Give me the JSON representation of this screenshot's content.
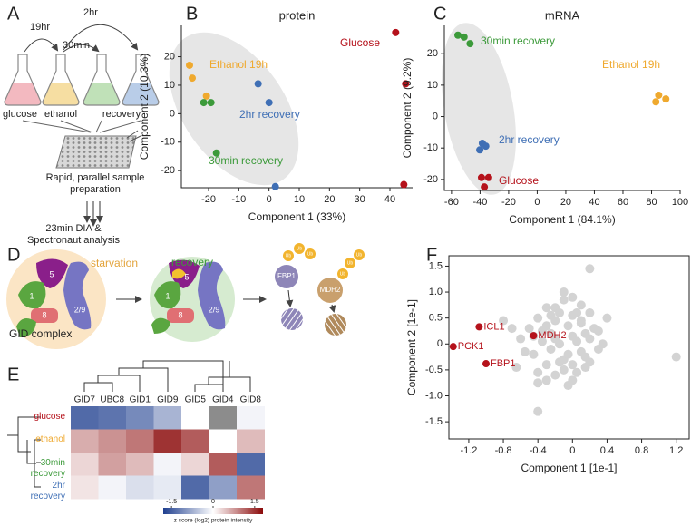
{
  "panel_labels": [
    "A",
    "B",
    "C",
    "D",
    "E",
    "F"
  ],
  "workflow": {
    "times": [
      "19hr",
      "30min",
      "2hr"
    ],
    "flasks": [
      "glucose",
      "ethanol",
      "recovery"
    ],
    "steps": [
      "Rapid, parallel sample preparation",
      "23min DIA & Spectronaut analysis"
    ]
  },
  "gid": {
    "states": [
      "starvation",
      "recovery"
    ],
    "subunits": [
      "5",
      "1",
      "8",
      "2/9"
    ],
    "caption": "GID complex",
    "substrates": [
      "FBP1",
      "MDH2"
    ],
    "tag": "Ub"
  },
  "chart_data": [
    {
      "type": "scatter",
      "title": "protein",
      "xlabel": "Component 1 (33%)",
      "ylabel": "Component 2 (10.3%)",
      "xlim": [
        -29,
        47.5
      ],
      "ylim": [
        -26,
        31
      ],
      "xticks": [
        -20,
        -10,
        0,
        10,
        20,
        30,
        40
      ],
      "yticks": [
        -20,
        -10,
        0,
        10,
        20
      ],
      "series": [
        {
          "name": "Glucose",
          "color": "#b5121b",
          "x": [
            41.9,
            45.2,
            44.6
          ],
          "y": [
            28.5,
            10.5,
            -24.9
          ]
        },
        {
          "name": "Ethanol 19h",
          "color": "#efa92e",
          "x": [
            -26.3,
            -25.4,
            -20.7
          ],
          "y": [
            17,
            12.5,
            6.2
          ]
        },
        {
          "name": "30min recovery",
          "color": "#3c9a3a",
          "x": [
            -21.6,
            -19.2,
            -17.4
          ],
          "y": [
            3.9,
            3.9,
            -13.8
          ]
        },
        {
          "name": "2hr recovery",
          "color": "#3f6fb5",
          "x": [
            -3.6,
            0,
            2.1
          ],
          "y": [
            10.5,
            3.9,
            -25.6
          ]
        }
      ]
    },
    {
      "type": "scatter",
      "title": "mRNA",
      "xlabel": "Component 1 (84.1%)",
      "ylabel": "Component 2 (9.2%)",
      "xlim": [
        -65,
        100
      ],
      "ylim": [
        -23.5,
        29
      ],
      "xticks": [
        -60,
        -40,
        -20,
        0,
        20,
        40,
        60,
        80,
        100
      ],
      "yticks": [
        -20,
        -10,
        0,
        10,
        20
      ],
      "series": [
        {
          "name": "30min recovery",
          "color": "#3c9a3a",
          "x": [
            -55.5,
            -51.2,
            -47
          ],
          "y": [
            25.9,
            25.3,
            23.2
          ]
        },
        {
          "name": "Ethanol 19h",
          "color": "#efa92e",
          "x": [
            85,
            90,
            83
          ],
          "y": [
            6.8,
            5.6,
            4.7
          ]
        },
        {
          "name": "2hr recovery",
          "color": "#3f6fb5",
          "x": [
            -38.4,
            -36,
            -40.2
          ],
          "y": [
            -8.5,
            -9.4,
            -10.6
          ]
        },
        {
          "name": "Glucose",
          "color": "#b5121b",
          "x": [
            -39,
            -34,
            -37
          ],
          "y": [
            -19.4,
            -19.4,
            -22.4
          ]
        }
      ]
    },
    {
      "type": "heatmap",
      "columns": [
        "GID7",
        "UBC8",
        "GID1",
        "GID9",
        "GID5",
        "GID4",
        "GID8"
      ],
      "rows": [
        "glucose",
        "ethanol",
        "30min recovery",
        "2hr recovery"
      ],
      "row_colors": [
        "#b5121b",
        "#efa92e",
        "#3c9a3a",
        "#3f6fb5"
      ],
      "values": [
        [
          -1.4,
          -1.3,
          -1.1,
          -0.7,
          0,
          null,
          -0.1
        ],
        [
          0.6,
          0.8,
          1.0,
          1.5,
          1.2,
          0,
          0.5
        ],
        [
          0.3,
          0.7,
          0.5,
          -0.1,
          0.3,
          1.2,
          -1.4
        ],
        [
          0.2,
          -0.1,
          -0.3,
          -0.2,
          -1.4,
          -0.9,
          1.0
        ]
      ],
      "missing_color": "#8c8c8c",
      "clim": [
        -1.8,
        1.8
      ],
      "colorbar": {
        "ticks": [
          -1.5,
          0,
          1.5
        ],
        "label": "z score (log2) protein intensity"
      }
    },
    {
      "type": "scatter",
      "xlabel": "Component 1 [1e-1]",
      "ylabel": "Component 2 [1e-1]",
      "xlim": [
        -1.43,
        1.35
      ],
      "ylim": [
        -1.83,
        1.7
      ],
      "xticks": [
        -1.2,
        -0.8,
        -0.4,
        0,
        0.4,
        0.8,
        1.2
      ],
      "yticks": [
        1.5,
        {
          "value": 1,
          "label": "1.0"
        },
        0.5,
        0,
        -0.5,
        {
          "value": -1,
          "label": "-1.0"
        },
        -1.5
      ],
      "series": [
        {
          "color": "#d3d3d3",
          "x": [
            -0.6,
            -0.5,
            -0.45,
            -0.4,
            -0.35,
            -0.3,
            -0.3,
            -0.25,
            -0.2,
            -0.2,
            -0.15,
            -0.1,
            -0.1,
            -0.05,
            0,
            0,
            0.05,
            0.1,
            0.1,
            0.15,
            0.2,
            0.25,
            0.3,
            -0.55,
            -0.4,
            -0.3,
            -0.2,
            -0.1,
            0,
            0.1,
            0.2,
            -0.35,
            -0.25,
            -0.15,
            -0.05,
            0.05,
            0.15,
            -0.45,
            -0.3,
            -0.15,
            0,
            0.15,
            0.3,
            -0.2,
            -0.05,
            0.1,
            -0.25,
            0,
            0.2,
            -0.7,
            0.35,
            -0.1,
            0.05,
            -0.4,
            1.2,
            -0.4,
            0.2,
            -0.8,
            -0.65,
            0.4
          ],
          "y": [
            0.1,
            0.3,
            -0.2,
            0.5,
            0.05,
            -0.4,
            0.7,
            0.2,
            -0.6,
            0.45,
            0.0,
            0.85,
            -0.3,
            0.35,
            -0.7,
            0.15,
            0.6,
            -0.15,
            0.4,
            -0.45,
            0.1,
            0.3,
            -0.1,
            -0.15,
            -0.55,
            0.35,
            0.7,
            -0.5,
            0.55,
            0.75,
            -0.35,
            0.25,
            -0.1,
            0.6,
            -0.2,
            0.05,
            0.2,
            0.15,
            -0.7,
            -0.35,
            0.9,
            -0.25,
            0.25,
            0.1,
            -0.8,
            0.45,
            0.55,
            -0.4,
            0.6,
            0.3,
            0.0,
            1.0,
            -0.55,
            -0.75,
            -0.25,
            -1.3,
            1.45,
            0.45,
            -0.45,
            0.5
          ]
        },
        {
          "color": "#b5121b",
          "x": [
            -1.08,
            -1.38,
            -1.0,
            -0.45
          ],
          "y": [
            0.33,
            -0.05,
            -0.38,
            0.16
          ],
          "point_labels": [
            "ICL1",
            "PCK1",
            "FBP1",
            "MDH2"
          ]
        }
      ]
    }
  ]
}
